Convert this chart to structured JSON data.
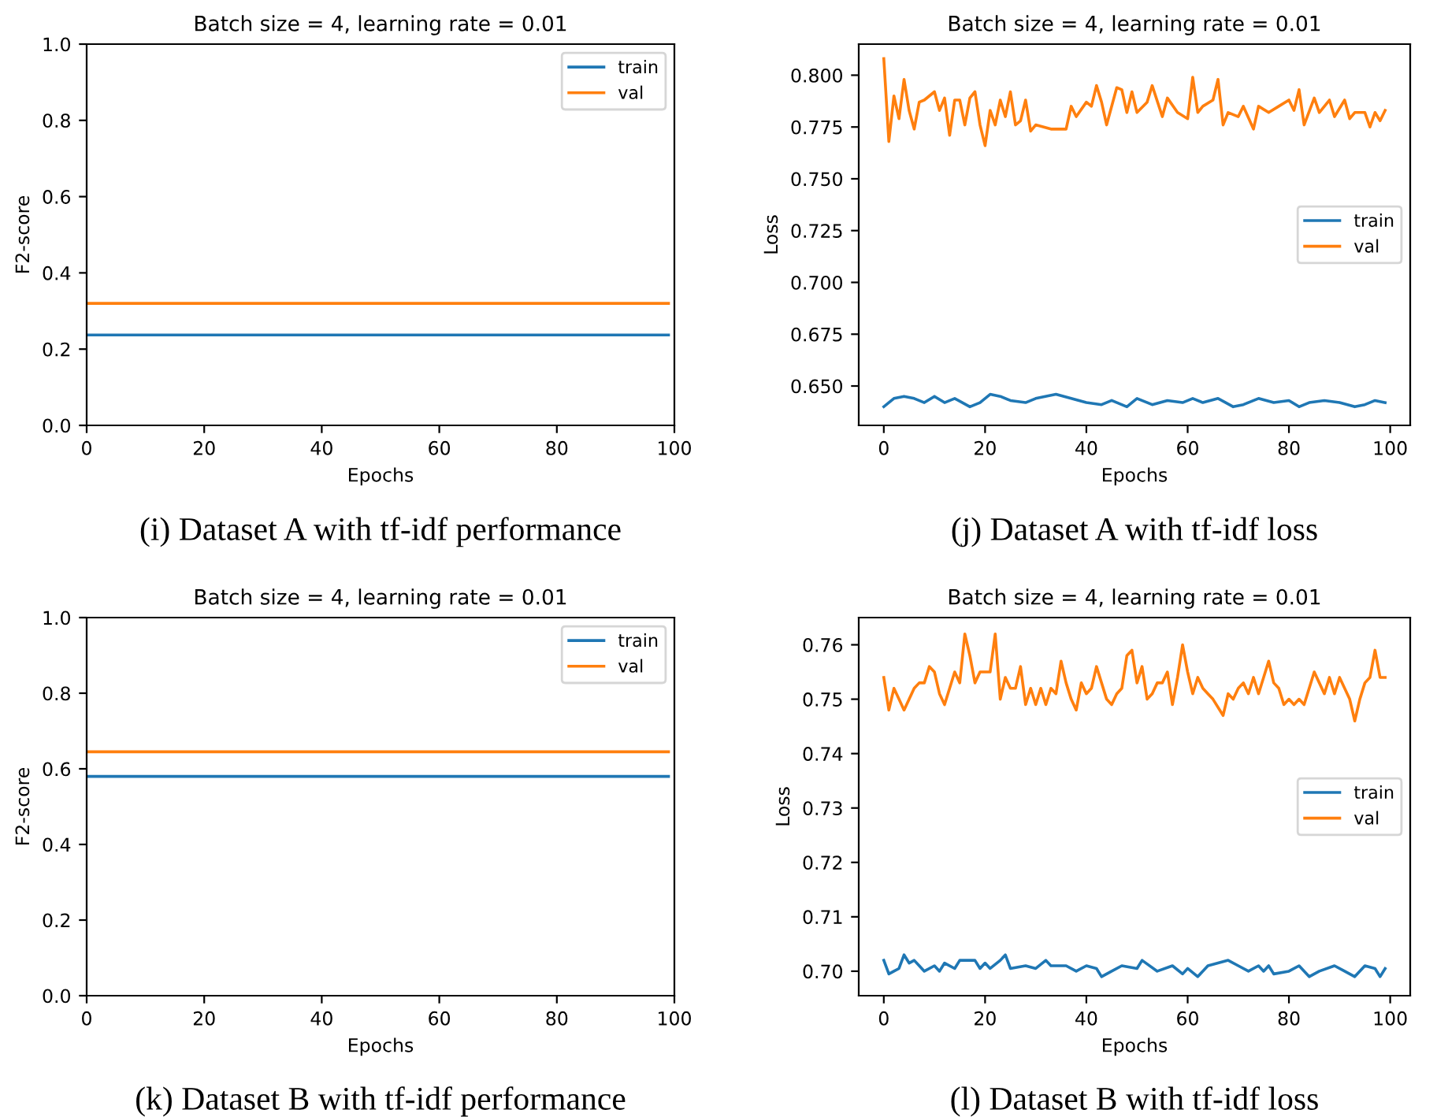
{
  "chart_data": [
    {
      "type": "line",
      "title": "Batch size = 4, learning rate = 0.01",
      "xlabel": "Epochs",
      "ylabel": "F2-score",
      "xlim": [
        0,
        100
      ],
      "ylim": [
        0,
        1.0
      ],
      "xticks": [
        0,
        20,
        40,
        60,
        80,
        100
      ],
      "yticks": [
        {
          "value": 0,
          "label": "0.0"
        },
        {
          "value": 0.2,
          "label": "0.2"
        },
        {
          "value": 0.4,
          "label": "0.4"
        },
        {
          "value": 0.6,
          "label": "0.6"
        },
        {
          "value": 0.8,
          "label": "0.8"
        },
        {
          "value": 1.0,
          "label": "1.0"
        }
      ],
      "legend": "top right",
      "grid": false,
      "annotations": [
        "(i) Dataset A with tf-idf performance"
      ],
      "series": [
        {
          "name": "train",
          "color": "#1f77b4",
          "x": [
            0,
            99
          ],
          "values": [
            0.237,
            0.237
          ]
        },
        {
          "name": "val",
          "color": "#ff7f0e",
          "x": [
            0,
            99
          ],
          "values": [
            0.32,
            0.32
          ]
        }
      ]
    },
    {
      "type": "line",
      "title": "Batch size = 4, learning rate = 0.01",
      "xlabel": "Epochs",
      "ylabel": "Loss",
      "xlim": [
        -4.95,
        103.95
      ],
      "ylim": [
        0.631,
        0.815
      ],
      "xticks": [
        0,
        20,
        40,
        60,
        80,
        100
      ],
      "yticks": [
        {
          "value": 0.65,
          "label": "0.650"
        },
        {
          "value": 0.675,
          "label": "0.675"
        },
        {
          "value": 0.7,
          "label": "0.700"
        },
        {
          "value": 0.725,
          "label": "0.725"
        },
        {
          "value": 0.75,
          "label": "0.750"
        },
        {
          "value": 0.775,
          "label": "0.775"
        },
        {
          "value": 0.8,
          "label": "0.800"
        }
      ],
      "legend": "right",
      "grid": false,
      "annotations": [
        "(j) Dataset A with tf-idf loss"
      ],
      "series": [
        {
          "name": "train",
          "color": "#1f77b4",
          "x": [
            0,
            2,
            4,
            6,
            8,
            10,
            12,
            14,
            17,
            19,
            21,
            23,
            25,
            28,
            30,
            34,
            37,
            40,
            43,
            45,
            48,
            50,
            53,
            56,
            59,
            61,
            63,
            66,
            69,
            71,
            74,
            77,
            80,
            82,
            84,
            87,
            90,
            93,
            95,
            97,
            99
          ],
          "values": [
            0.64,
            0.644,
            0.645,
            0.644,
            0.642,
            0.645,
            0.642,
            0.644,
            0.64,
            0.642,
            0.646,
            0.645,
            0.643,
            0.642,
            0.644,
            0.646,
            0.644,
            0.642,
            0.641,
            0.643,
            0.64,
            0.644,
            0.641,
            0.643,
            0.642,
            0.644,
            0.642,
            0.644,
            0.64,
            0.641,
            0.644,
            0.642,
            0.643,
            0.64,
            0.642,
            0.643,
            0.642,
            0.64,
            0.641,
            0.643,
            0.642
          ]
        },
        {
          "name": "val",
          "color": "#ff7f0e",
          "x": [
            0,
            1,
            2,
            3,
            4,
            5,
            6,
            7,
            8,
            9,
            10,
            11,
            12,
            13,
            14,
            15,
            16,
            17,
            18,
            19,
            20,
            21,
            22,
            23,
            24,
            25,
            26,
            27,
            28,
            29,
            30,
            33,
            36,
            37,
            38,
            40,
            41,
            42,
            43,
            44,
            46,
            47,
            48,
            49,
            50,
            52,
            53,
            55,
            56,
            58,
            60,
            61,
            62,
            63,
            65,
            66,
            67,
            68,
            70,
            71,
            73,
            74,
            76,
            78,
            80,
            81,
            82,
            83,
            85,
            86,
            88,
            89,
            91,
            92,
            93,
            95,
            96,
            97,
            98,
            99
          ],
          "values": [
            0.808,
            0.768,
            0.79,
            0.779,
            0.798,
            0.783,
            0.774,
            0.787,
            0.788,
            0.79,
            0.792,
            0.783,
            0.789,
            0.771,
            0.788,
            0.788,
            0.776,
            0.789,
            0.792,
            0.776,
            0.766,
            0.783,
            0.776,
            0.788,
            0.78,
            0.792,
            0.776,
            0.778,
            0.788,
            0.773,
            0.776,
            0.774,
            0.774,
            0.785,
            0.78,
            0.787,
            0.785,
            0.795,
            0.787,
            0.776,
            0.794,
            0.793,
            0.782,
            0.792,
            0.782,
            0.787,
            0.795,
            0.78,
            0.789,
            0.782,
            0.779,
            0.799,
            0.782,
            0.785,
            0.788,
            0.798,
            0.776,
            0.782,
            0.78,
            0.785,
            0.774,
            0.785,
            0.782,
            0.785,
            0.788,
            0.783,
            0.793,
            0.776,
            0.789,
            0.782,
            0.788,
            0.78,
            0.788,
            0.779,
            0.782,
            0.782,
            0.775,
            0.782,
            0.778,
            0.783
          ]
        }
      ]
    },
    {
      "type": "line",
      "title": "Batch size = 4, learning rate = 0.01",
      "xlabel": "Epochs",
      "ylabel": "F2-score",
      "xlim": [
        0,
        100
      ],
      "ylim": [
        0,
        1.0
      ],
      "xticks": [
        0,
        20,
        40,
        60,
        80,
        100
      ],
      "yticks": [
        {
          "value": 0,
          "label": "0.0"
        },
        {
          "value": 0.2,
          "label": "0.2"
        },
        {
          "value": 0.4,
          "label": "0.4"
        },
        {
          "value": 0.6,
          "label": "0.6"
        },
        {
          "value": 0.8,
          "label": "0.8"
        },
        {
          "value": 1.0,
          "label": "1.0"
        }
      ],
      "legend": "top right",
      "grid": false,
      "annotations": [
        "(k) Dataset B with tf-idf performance"
      ],
      "series": [
        {
          "name": "train",
          "color": "#1f77b4",
          "x": [
            0,
            99
          ],
          "values": [
            0.58,
            0.58
          ]
        },
        {
          "name": "val",
          "color": "#ff7f0e",
          "x": [
            0,
            99
          ],
          "values": [
            0.645,
            0.645
          ]
        }
      ]
    },
    {
      "type": "line",
      "title": "Batch size = 4, learning rate = 0.01",
      "xlabel": "Epochs",
      "ylabel": "Loss",
      "xlim": [
        -4.95,
        103.95
      ],
      "ylim": [
        0.6955,
        0.765
      ],
      "xticks": [
        0,
        20,
        40,
        60,
        80,
        100
      ],
      "yticks": [
        {
          "value": 0.7,
          "label": "0.70"
        },
        {
          "value": 0.71,
          "label": "0.71"
        },
        {
          "value": 0.72,
          "label": "0.72"
        },
        {
          "value": 0.73,
          "label": "0.73"
        },
        {
          "value": 0.74,
          "label": "0.74"
        },
        {
          "value": 0.75,
          "label": "0.75"
        },
        {
          "value": 0.76,
          "label": "0.76"
        }
      ],
      "legend": "right",
      "grid": false,
      "annotations": [
        "(l) Dataset B with tf-idf loss"
      ],
      "series": [
        {
          "name": "train",
          "color": "#1f77b4",
          "x": [
            0,
            1,
            2,
            3,
            4,
            5,
            6,
            7,
            8,
            10,
            11,
            12,
            14,
            15,
            18,
            19,
            20,
            21,
            23,
            24,
            25,
            28,
            30,
            32,
            33,
            36,
            38,
            40,
            42,
            43,
            45,
            47,
            50,
            51,
            54,
            57,
            59,
            60,
            62,
            64,
            66,
            68,
            70,
            72,
            74,
            75,
            76,
            77,
            80,
            82,
            84,
            86,
            89,
            91,
            93,
            95,
            97,
            98,
            99
          ],
          "values": [
            0.702,
            0.6995,
            0.7,
            0.7005,
            0.703,
            0.7015,
            0.702,
            0.701,
            0.7,
            0.701,
            0.7,
            0.7015,
            0.7005,
            0.702,
            0.702,
            0.7005,
            0.7015,
            0.7005,
            0.702,
            0.703,
            0.7005,
            0.701,
            0.7005,
            0.702,
            0.701,
            0.701,
            0.7,
            0.701,
            0.7005,
            0.699,
            0.7,
            0.701,
            0.7005,
            0.702,
            0.7,
            0.701,
            0.6995,
            0.7005,
            0.699,
            0.701,
            0.7015,
            0.702,
            0.701,
            0.7,
            0.701,
            0.7,
            0.701,
            0.6995,
            0.7,
            0.701,
            0.699,
            0.7,
            0.701,
            0.7,
            0.699,
            0.701,
            0.7005,
            0.699,
            0.7005
          ]
        },
        {
          "name": "val",
          "color": "#ff7f0e",
          "x": [
            0,
            1,
            2,
            3,
            4,
            6,
            7,
            8,
            9,
            10,
            11,
            12,
            14,
            15,
            16,
            17,
            18,
            19,
            21,
            22,
            23,
            24,
            25,
            26,
            27,
            28,
            29,
            30,
            31,
            32,
            33,
            34,
            35,
            36,
            37,
            38,
            39,
            40,
            41,
            42,
            43,
            44,
            45,
            46,
            47,
            48,
            49,
            50,
            51,
            52,
            53,
            54,
            55,
            56,
            57,
            58,
            59,
            60,
            61,
            62,
            63,
            64,
            65,
            67,
            68,
            69,
            70,
            71,
            72,
            73,
            74,
            76,
            77,
            78,
            79,
            80,
            81,
            82,
            83,
            85,
            86,
            87,
            88,
            89,
            90,
            91,
            92,
            93,
            94,
            95,
            96,
            97,
            98,
            99
          ],
          "values": [
            0.754,
            0.748,
            0.752,
            0.75,
            0.748,
            0.752,
            0.753,
            0.753,
            0.756,
            0.755,
            0.751,
            0.749,
            0.755,
            0.753,
            0.762,
            0.758,
            0.753,
            0.755,
            0.755,
            0.762,
            0.75,
            0.754,
            0.752,
            0.752,
            0.756,
            0.749,
            0.752,
            0.749,
            0.752,
            0.749,
            0.752,
            0.751,
            0.757,
            0.753,
            0.75,
            0.748,
            0.753,
            0.751,
            0.752,
            0.756,
            0.753,
            0.75,
            0.749,
            0.751,
            0.752,
            0.758,
            0.759,
            0.753,
            0.756,
            0.75,
            0.751,
            0.753,
            0.753,
            0.755,
            0.749,
            0.754,
            0.76,
            0.755,
            0.751,
            0.754,
            0.752,
            0.751,
            0.75,
            0.747,
            0.751,
            0.75,
            0.752,
            0.753,
            0.751,
            0.754,
            0.751,
            0.757,
            0.753,
            0.752,
            0.749,
            0.75,
            0.749,
            0.75,
            0.749,
            0.755,
            0.753,
            0.751,
            0.754,
            0.751,
            0.754,
            0.752,
            0.75,
            0.746,
            0.75,
            0.753,
            0.754,
            0.759,
            0.754,
            0.754
          ]
        }
      ]
    }
  ]
}
